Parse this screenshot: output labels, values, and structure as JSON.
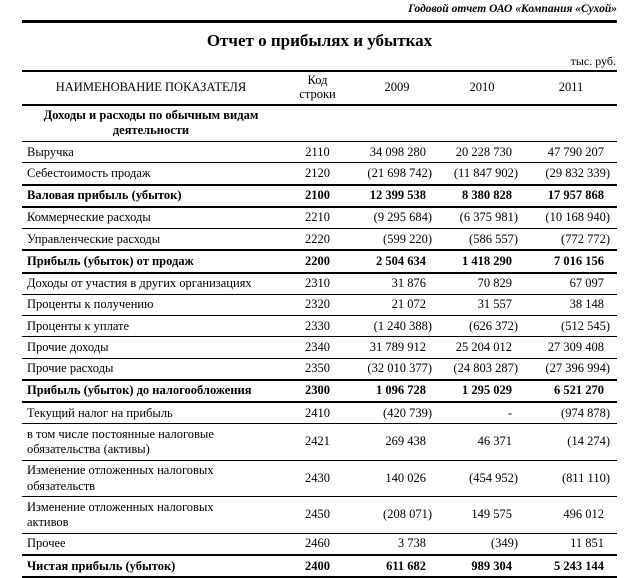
{
  "page_header": "Годовой отчет ОАО «Компания «Сухой»",
  "title": "Отчет о прибылях и убытках",
  "units_note": "тыс. руб.",
  "table": {
    "columns": [
      "НАИМЕНОВАНИЕ ПОКАЗАТЕЛЯ",
      "Код\nстроки",
      "2009",
      "2010",
      "2011"
    ],
    "rows": [
      {
        "label": "Доходы и расходы по обычным видам\nдеятельности",
        "code": "",
        "y2009": "",
        "y2010": "",
        "y2011": "",
        "style": "section"
      },
      {
        "label": "Выручка",
        "code": "2110",
        "y2009": "34 098 280",
        "y2010": "20 228 730",
        "y2011": "47 790 207",
        "style": "normal"
      },
      {
        "label": "Себестоимость продаж",
        "code": "2120",
        "y2009": "(21 698 742)",
        "y2010": "(11 847 902)",
        "y2011": "(29 832 339)",
        "style": "normal"
      },
      {
        "label": "Валовая прибыль (убыток)",
        "code": "2100",
        "y2009": "12 399 538",
        "y2010": "8 380 828",
        "y2011": "17 957 868",
        "style": "bold"
      },
      {
        "label": "Коммерческие расходы",
        "code": "2210",
        "y2009": "(9 295 684)",
        "y2010": "(6 375 981)",
        "y2011": "(10 168 940)",
        "style": "normal"
      },
      {
        "label": "Управленческие расходы",
        "code": "2220",
        "y2009": "(599 220)",
        "y2010": "(586 557)",
        "y2011": "(772 772)",
        "style": "normal"
      },
      {
        "label": "Прибыль (убыток) от продаж",
        "code": "2200",
        "y2009": "2 504 634",
        "y2010": "1 418 290",
        "y2011": "7 016 156",
        "style": "bold"
      },
      {
        "label": "Доходы от участия в других организациях",
        "code": "2310",
        "y2009": "31 876",
        "y2010": "70 829",
        "y2011": "67 097",
        "style": "normal"
      },
      {
        "label": "Проценты к получению",
        "code": "2320",
        "y2009": "21 072",
        "y2010": "31 557",
        "y2011": "38 148",
        "style": "normal"
      },
      {
        "label": "Проценты к уплате",
        "code": "2330",
        "y2009": "(1 240 388)",
        "y2010": "(626 372)",
        "y2011": "(512 545)",
        "style": "normal"
      },
      {
        "label": "Прочие доходы",
        "code": "2340",
        "y2009": "31 789 912",
        "y2010": "25 204 012",
        "y2011": "27 309 408",
        "style": "normal"
      },
      {
        "label": "Прочие расходы",
        "code": "2350",
        "y2009": "(32 010 377)",
        "y2010": "(24 803 287)",
        "y2011": "(27 396 994)",
        "style": "normal"
      },
      {
        "label": "Прибыль (убыток) до налогообложения",
        "code": "2300",
        "y2009": "1 096 728",
        "y2010": "1 295 029",
        "y2011": "6 521 270",
        "style": "bold"
      },
      {
        "label": "Текущий налог на прибыль",
        "code": "2410",
        "y2009": "(420 739)",
        "y2010": "-",
        "y2011": "(974 878)",
        "style": "normal"
      },
      {
        "label": "в том числе постоянные налоговые\nобязательства (активы)",
        "code": "2421",
        "y2009": "269 438",
        "y2010": "46 371",
        "y2011": "(14 274)",
        "style": "normal"
      },
      {
        "label": "Изменение отложенных налоговых\nобязательств",
        "code": "2430",
        "y2009": "140 026",
        "y2010": "(454 952)",
        "y2011": "(811 110)",
        "style": "normal"
      },
      {
        "label": "Изменение отложенных налоговых\nактивов",
        "code": "2450",
        "y2009": "(208 071)",
        "y2010": "149 575",
        "y2011": "496 012",
        "style": "normal"
      },
      {
        "label": "Прочее",
        "code": "2460",
        "y2009": "3 738",
        "y2010": "(349)",
        "y2011": "11 851",
        "style": "normal"
      },
      {
        "label": "Чистая прибыль (убыток)",
        "code": "2400",
        "y2009": "611 682",
        "y2010": "989 304",
        "y2011": "5 243 144",
        "style": "bold"
      }
    ]
  }
}
